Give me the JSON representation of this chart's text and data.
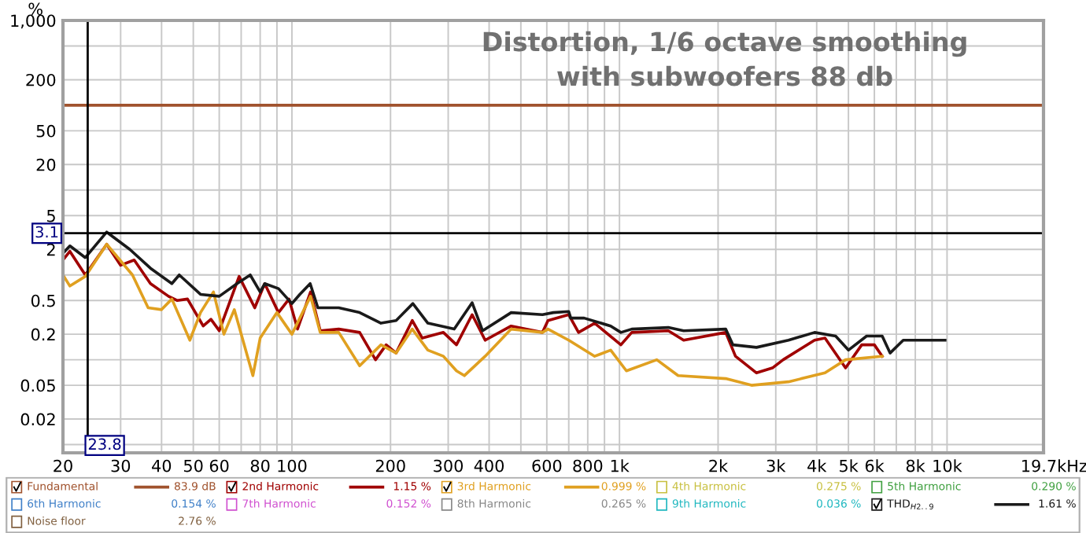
{
  "chart_data": {
    "type": "line",
    "title": "Distortion, 1/6 octave smoothing",
    "subtitle": "with subwoofers 88 db",
    "ylabel": "%",
    "log": "xy",
    "grid": true,
    "legend": "bottom",
    "xlim": [
      20,
      19700
    ],
    "ylim": [
      0.008,
      1000
    ],
    "xticks": [
      20,
      30,
      40,
      50,
      60,
      {
        "value": 70,
        "label": null
      },
      80,
      {
        "value": 90,
        "label": null
      },
      100,
      200,
      300,
      400,
      {
        "value": 500,
        "label": null
      },
      600,
      {
        "value": 700,
        "label": null
      },
      800,
      {
        "value": 900,
        "label": null
      },
      {
        "value": 1000,
        "label": "1k"
      },
      {
        "value": 2000,
        "label": "2k"
      },
      {
        "value": 3000,
        "label": "3k"
      },
      {
        "value": 4000,
        "label": "4k"
      },
      {
        "value": 5000,
        "label": "5k"
      },
      {
        "value": 6000,
        "label": "6k"
      },
      {
        "value": 7000,
        "label": null
      },
      {
        "value": 8000,
        "label": "8k"
      },
      {
        "value": 9000,
        "label": null
      },
      {
        "value": 10000,
        "label": "10k"
      },
      {
        "value": 19700,
        "label": "19.7k"
      }
    ],
    "xlabel": "Hz",
    "yticks": [
      {
        "value": 1000,
        "label": "1,000"
      },
      {
        "value": 500,
        "label": null
      },
      200,
      {
        "value": 100,
        "label": null
      },
      50,
      20,
      {
        "value": 10,
        "label": null
      },
      5,
      2,
      {
        "value": 1,
        "label": null
      },
      0.5,
      0.2,
      {
        "value": 0.1,
        "label": null
      },
      0.05,
      0.02,
      {
        "value": 0.01,
        "label": null
      }
    ],
    "ref_lines": [
      {
        "axis": "x",
        "value": 23.8,
        "label": "23.8",
        "color": "#000000"
      },
      {
        "axis": "y",
        "value": 3.1,
        "label": "3.1",
        "color": "#000000"
      }
    ],
    "annotations": [
      "83.9 dB",
      "1.15 %",
      "0.999 %",
      "0.275 %",
      "0.290 %",
      "0.154 %",
      "0.152 %",
      "0.265 %",
      "0.036 %",
      "1.61 %",
      "2.76 %"
    ],
    "series": [
      {
        "name": "Fundamental",
        "color": "#a0522d",
        "x": [
          20,
          19700
        ],
        "values": [
          100,
          100
        ]
      },
      {
        "name": "2nd Harmonic",
        "color": "#a00000",
        "x": [
          20,
          21,
          23.4,
          27.2,
          30,
          33,
          37,
          42,
          44.6,
          48,
          53.6,
          56.6,
          60,
          69,
          77,
          82.6,
          91,
          98,
          104,
          114,
          122,
          139,
          161,
          180,
          194,
          208,
          233,
          250,
          290,
          318,
          355,
          389,
          467,
          582,
          605,
          700,
          750,
          840,
          1010,
          1090,
          1410,
          1570,
          2110,
          2260,
          2620,
          2930,
          3160,
          3940,
          4240,
          4900,
          5490,
          6000,
          6340
        ],
        "values": [
          1.5,
          1.9,
          1.0,
          2.3,
          1.3,
          1.5,
          0.79,
          0.56,
          0.5,
          0.52,
          0.25,
          0.3,
          0.22,
          0.96,
          0.41,
          0.79,
          0.36,
          0.52,
          0.23,
          0.63,
          0.22,
          0.23,
          0.21,
          0.1,
          0.15,
          0.12,
          0.29,
          0.18,
          0.21,
          0.15,
          0.34,
          0.17,
          0.25,
          0.21,
          0.29,
          0.34,
          0.21,
          0.27,
          0.15,
          0.21,
          0.22,
          0.17,
          0.21,
          0.11,
          0.07,
          0.08,
          0.1,
          0.17,
          0.18,
          0.08,
          0.15,
          0.15,
          0.11
        ]
      },
      {
        "name": "3rd Harmonic",
        "color": "#e0a020",
        "x": [
          20,
          21,
          23.4,
          27.2,
          32.6,
          36.4,
          40,
          43,
          48.8,
          52.6,
          57.6,
          62,
          66.7,
          76,
          80,
          90,
          100,
          114,
          122,
          139,
          161,
          187,
          208,
          233,
          260,
          290,
          318,
          336,
          389,
          467,
          582,
          605,
          700,
          840,
          940,
          1050,
          1300,
          1510,
          2110,
          2530,
          3280,
          4240,
          4900,
          6340
        ],
        "values": [
          1.0,
          0.74,
          0.96,
          2.3,
          1.0,
          0.41,
          0.39,
          0.52,
          0.17,
          0.36,
          0.63,
          0.2,
          0.39,
          0.065,
          0.18,
          0.36,
          0.2,
          0.56,
          0.21,
          0.21,
          0.085,
          0.15,
          0.12,
          0.23,
          0.13,
          0.11,
          0.074,
          0.065,
          0.11,
          0.23,
          0.21,
          0.23,
          0.17,
          0.11,
          0.13,
          0.074,
          0.1,
          0.065,
          0.06,
          0.05,
          0.055,
          0.07,
          0.1,
          0.11
        ]
      },
      {
        "name": "4th Harmonic",
        "color": "#c8c040"
      },
      {
        "name": "5th Harmonic",
        "color": "#40a040"
      },
      {
        "name": "6th Harmonic",
        "color": "#4080c8"
      },
      {
        "name": "7th Harmonic",
        "color": "#d050d0"
      },
      {
        "name": "8th Harmonic",
        "color": "#888888"
      },
      {
        "name": "9th Harmonic",
        "color": "#20b8c0"
      },
      {
        "name": "THD$_{H2..9}$",
        "color": "#1a1a1a",
        "x": [
          20,
          21,
          23.4,
          27.2,
          32,
          37,
          43,
          45.3,
          52.6,
          60,
          68,
          74.6,
          80,
          82.6,
          91,
          100,
          105.7,
          113.7,
          120,
          139,
          161,
          187,
          208,
          234,
          260,
          313,
          355,
          382,
          467,
          582,
          628,
          700,
          710,
          780,
          940,
          1010,
          1090,
          1410,
          1570,
          2110,
          2220,
          2620,
          3280,
          3940,
          4570,
          5000,
          5680,
          6340,
          6700,
          7350,
          7920,
          8530,
          9860
        ],
        "values": [
          1.8,
          2.2,
          1.6,
          3.2,
          2.0,
          1.2,
          0.79,
          1.0,
          0.59,
          0.56,
          0.79,
          1.0,
          0.63,
          0.79,
          0.69,
          0.46,
          0.59,
          0.79,
          0.41,
          0.41,
          0.36,
          0.27,
          0.29,
          0.46,
          0.27,
          0.23,
          0.47,
          0.22,
          0.36,
          0.34,
          0.36,
          0.37,
          0.31,
          0.31,
          0.25,
          0.21,
          0.23,
          0.24,
          0.22,
          0.23,
          0.15,
          0.14,
          0.17,
          0.21,
          0.19,
          0.13,
          0.19,
          0.19,
          0.12,
          0.17,
          0.17,
          0.17,
          0.17
        ]
      },
      {
        "name": "Noise floor",
        "color": "#806040"
      }
    ]
  }
}
